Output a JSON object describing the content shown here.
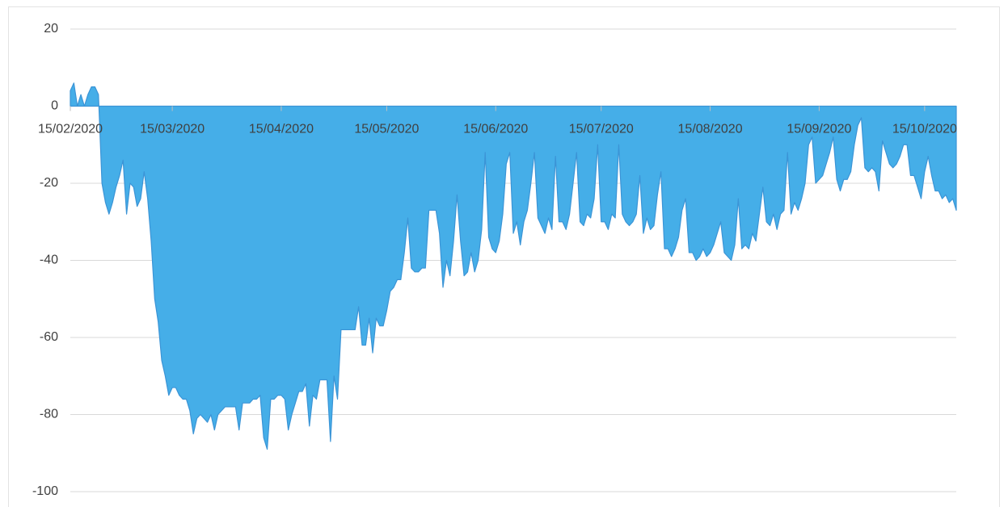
{
  "chart_data": {
    "type": "area",
    "color": "#45aee8",
    "line_color": "#3b94d6",
    "grid": true,
    "ylim": [
      -100,
      20
    ],
    "yticks": [
      20,
      0,
      -20,
      -40,
      -60,
      -80,
      -100
    ],
    "categories": [
      "15/02/2020",
      null,
      null,
      null,
      null,
      null,
      null,
      null,
      null,
      null,
      null,
      null,
      null,
      null,
      null,
      null,
      null,
      null,
      null,
      null,
      null,
      null,
      null,
      null,
      null,
      null,
      null,
      null,
      null,
      "15/03/2020",
      null,
      null,
      null,
      null,
      null,
      null,
      null,
      null,
      null,
      null,
      null,
      null,
      null,
      null,
      null,
      null,
      null,
      null,
      null,
      null,
      null,
      null,
      null,
      null,
      null,
      null,
      null,
      null,
      null,
      null,
      "15/04/2020",
      null,
      null,
      null,
      null,
      null,
      null,
      null,
      null,
      null,
      null,
      null,
      null,
      null,
      null,
      null,
      null,
      null,
      null,
      null,
      null,
      null,
      null,
      null,
      null,
      null,
      null,
      null,
      null,
      null,
      "15/05/2020",
      null,
      null,
      null,
      null,
      null,
      null,
      null,
      null,
      null,
      null,
      null,
      null,
      null,
      null,
      null,
      null,
      null,
      null,
      null,
      null,
      null,
      null,
      null,
      null,
      null,
      null,
      null,
      null,
      null,
      null,
      "15/06/2020",
      null,
      null,
      null,
      null,
      null,
      null,
      null,
      null,
      null,
      null,
      null,
      null,
      null,
      null,
      null,
      null,
      null,
      null,
      null,
      null,
      null,
      null,
      null,
      null,
      null,
      null,
      null,
      null,
      null,
      "15/07/2020",
      null,
      null,
      null,
      null,
      null,
      null,
      null,
      null,
      null,
      null,
      null,
      null,
      null,
      null,
      null,
      null,
      null,
      null,
      null,
      null,
      null,
      null,
      null,
      null,
      null,
      null,
      null,
      null,
      null,
      null,
      "15/08/2020",
      null,
      null,
      null,
      null,
      null,
      null,
      null,
      null,
      null,
      null,
      null,
      null,
      null,
      null,
      null,
      null,
      null,
      null,
      null,
      null,
      null,
      null,
      null,
      null,
      null,
      null,
      null,
      null,
      null,
      null,
      "15/09/2020",
      null,
      null,
      null,
      null,
      null,
      null,
      null,
      null,
      null,
      null,
      null,
      null,
      null,
      null,
      null,
      null,
      null,
      null,
      null,
      null,
      null,
      null,
      null,
      null,
      null,
      null,
      null,
      null,
      null,
      "15/10/2020",
      null,
      null,
      null,
      null,
      null,
      null,
      null,
      null,
      null
    ],
    "values": [
      4,
      6,
      0,
      3,
      0,
      3,
      5,
      5,
      3,
      -20,
      -25,
      -28,
      -25,
      -21,
      -18,
      -14,
      -28,
      -20,
      -21,
      -26,
      -24,
      -17,
      -24,
      -35,
      -50,
      -56,
      -66,
      -70,
      -75,
      -73,
      -73,
      -75,
      -76,
      -76,
      -79,
      -85,
      -81,
      -80,
      -81,
      -82,
      -80,
      -84,
      -80,
      -79,
      -78,
      -78,
      -78,
      -78,
      -84,
      -77,
      -77,
      -77,
      -76,
      -76,
      -75,
      -86,
      -89,
      -76,
      -76,
      -75,
      -75,
      -76,
      -84,
      -80,
      -77,
      -74,
      -74,
      -72,
      -83,
      -75,
      -76,
      -71,
      -71,
      -71,
      -87,
      -70,
      -76,
      -58,
      -58,
      -58,
      -58,
      -58,
      -52,
      -62,
      -62,
      -55,
      -64,
      -55,
      -57,
      -57,
      -53,
      -48,
      -47,
      -45,
      -45,
      -38,
      -29,
      -42,
      -43,
      -43,
      -42,
      -42,
      -27,
      -27,
      -27,
      -33,
      -47,
      -40,
      -44,
      -35,
      -23,
      -35,
      -44,
      -43,
      -38,
      -43,
      -40,
      -32,
      -12,
      -34,
      -37,
      -38,
      -35,
      -28,
      -15,
      -12,
      -33,
      -30,
      -36,
      -30,
      -27,
      -20,
      -12,
      -29,
      -31,
      -33,
      -29,
      -32,
      -13,
      -30,
      -30,
      -32,
      -28,
      -20,
      -12,
      -30,
      -31,
      -28,
      -29,
      -24,
      -10,
      -30,
      -30,
      -32,
      -28,
      -29,
      -10,
      -28,
      -30,
      -31,
      -30,
      -28,
      -18,
      -33,
      -29,
      -32,
      -31,
      -23,
      -17,
      -37,
      -37,
      -39,
      -37,
      -34,
      -27,
      -24,
      -38,
      -38,
      -40,
      -39,
      -37,
      -39,
      -38,
      -36,
      -33,
      -30,
      -38,
      -39,
      -40,
      -36,
      -24,
      -37,
      -36,
      -37,
      -33,
      -35,
      -28,
      -21,
      -30,
      -31,
      -28,
      -32,
      -28,
      -27,
      -12,
      -28,
      -25,
      -27,
      -24,
      -20,
      -10,
      -8,
      -20,
      -19,
      -18,
      -15,
      -12,
      -8,
      -19,
      -22,
      -19,
      -19,
      -17,
      -10,
      -5,
      -3,
      -16,
      -17,
      -16,
      -17,
      -22,
      -9,
      -12,
      -15,
      -16,
      -15,
      -13,
      -10,
      -10,
      -18,
      -18,
      -21,
      -24,
      -17,
      -13,
      -18,
      -22,
      -22,
      -24,
      -23,
      -25,
      -24,
      -27
    ]
  }
}
